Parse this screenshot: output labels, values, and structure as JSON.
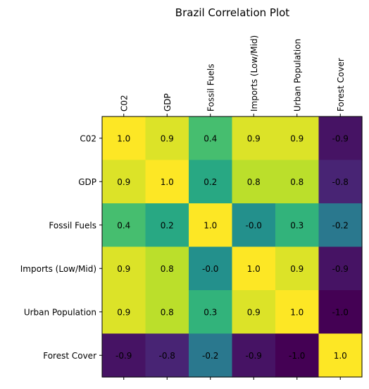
{
  "chart_data": {
    "type": "heatmap",
    "title": "Brazil Correlation Plot",
    "x_labels": [
      "C02",
      "GDP",
      "Fossil Fuels",
      "Imports (Low/Mid)",
      "Urban Population",
      "Forest Cover"
    ],
    "y_labels": [
      "C02",
      "GDP",
      "Fossil Fuels",
      "Imports (Low/Mid)",
      "Urban Population",
      "Forest Cover"
    ],
    "matrix": [
      [
        1.0,
        0.9,
        0.4,
        0.9,
        0.9,
        -0.9
      ],
      [
        0.9,
        1.0,
        0.2,
        0.8,
        0.8,
        -0.8
      ],
      [
        0.4,
        0.2,
        1.0,
        -0.0,
        0.3,
        -0.2
      ],
      [
        0.9,
        0.8,
        -0.0,
        1.0,
        0.9,
        -0.9
      ],
      [
        0.9,
        0.8,
        0.3,
        0.9,
        1.0,
        -1.0
      ],
      [
        -0.9,
        -0.8,
        -0.2,
        -0.9,
        -1.0,
        1.0
      ]
    ],
    "cell_labels": [
      [
        "1.0",
        "0.9",
        "0.4",
        "0.9",
        "0.9",
        "-0.9"
      ],
      [
        "0.9",
        "1.0",
        "0.2",
        "0.8",
        "0.8",
        "-0.8"
      ],
      [
        "0.4",
        "0.2",
        "1.0",
        "-0.0",
        "0.3",
        "-0.2"
      ],
      [
        "0.9",
        "0.8",
        "-0.0",
        "1.0",
        "0.9",
        "-0.9"
      ],
      [
        "0.9",
        "0.8",
        "0.3",
        "0.9",
        "1.0",
        "-1.0"
      ],
      [
        "-0.9",
        "-0.8",
        "-0.2",
        "-0.9",
        "-1.0",
        "1.0"
      ]
    ],
    "value_range": [
      -1.0,
      1.0
    ],
    "colormap": "viridis",
    "x_tick_position": "top",
    "x_tick_rotation": "vertical",
    "grid": false
  }
}
